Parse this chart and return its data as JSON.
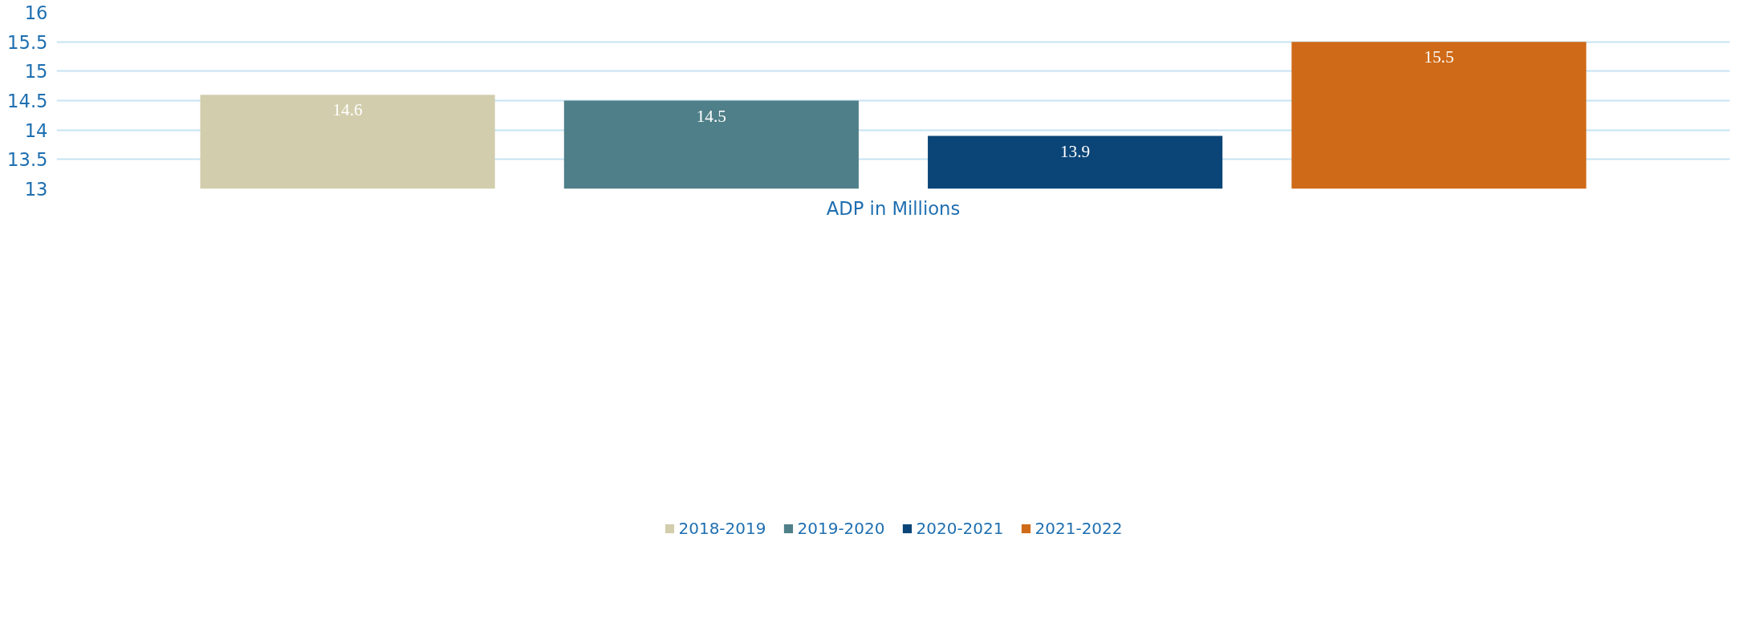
{
  "chart_data": {
    "type": "bar",
    "categories": [
      "ADP in Millions"
    ],
    "series": [
      {
        "name": "2018-2019",
        "color": "#d2cdac",
        "values": [
          14.6
        ]
      },
      {
        "name": "2019-2020",
        "color": "#4f7f88",
        "values": [
          14.5
        ]
      },
      {
        "name": "2020-2021",
        "color": "#0b4577",
        "values": [
          13.9
        ]
      },
      {
        "name": "2021-2022",
        "color": "#cf6a18",
        "values": [
          15.5
        ]
      }
    ],
    "ylim": [
      13,
      16
    ],
    "yticks": [
      13,
      13.5,
      14,
      14.5,
      15,
      15.5,
      16
    ],
    "grid": "y",
    "legend": "bottom",
    "data_labels": true
  }
}
